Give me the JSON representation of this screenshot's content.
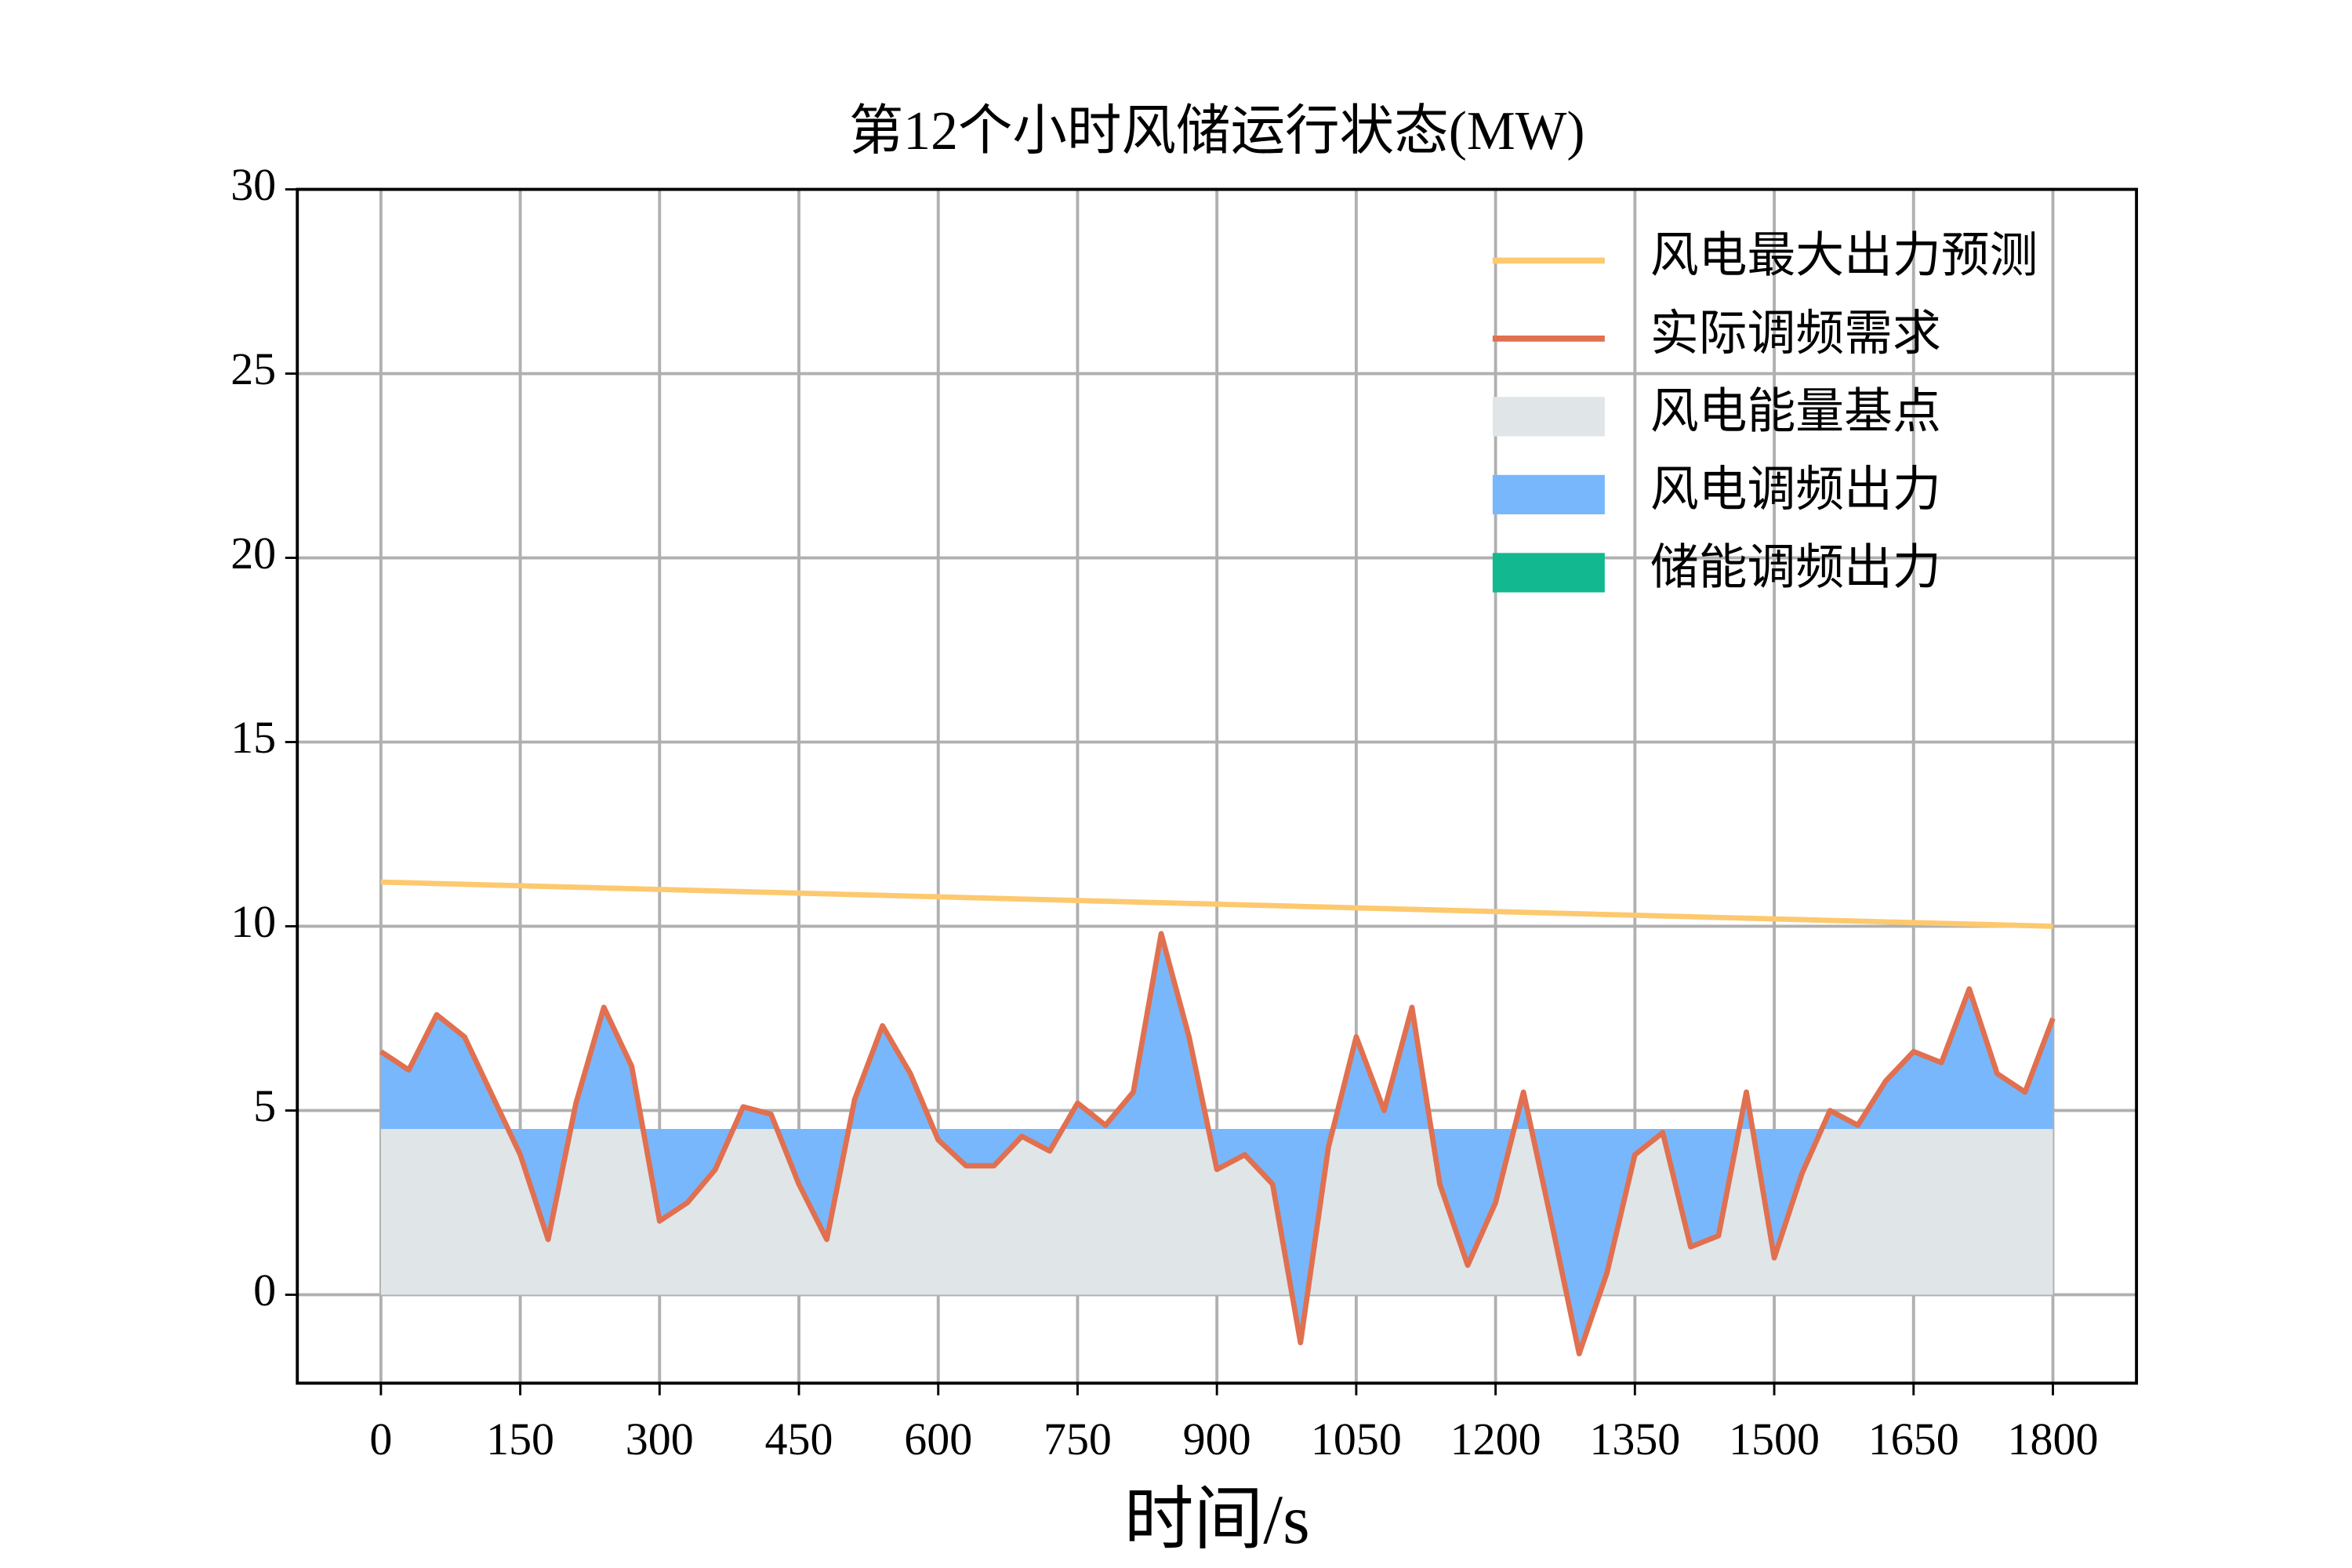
{
  "chart_data": {
    "type": "area",
    "title": "第12个小时风储运行状态(MW)",
    "x_label": "时间/s",
    "x": [
      0,
      30,
      60,
      90,
      120,
      150,
      180,
      210,
      240,
      270,
      300,
      330,
      360,
      390,
      420,
      450,
      480,
      510,
      540,
      570,
      600,
      630,
      660,
      690,
      720,
      750,
      780,
      810,
      840,
      870,
      900,
      930,
      960,
      990,
      1020,
      1050,
      1080,
      1110,
      1140,
      1170,
      1200,
      1230,
      1260,
      1290,
      1320,
      1350,
      1380,
      1410,
      1440,
      1470,
      1500,
      1530,
      1560,
      1590,
      1620,
      1650,
      1680,
      1710,
      1740,
      1770,
      1800
    ],
    "xlim": [
      -90,
      1890
    ],
    "xticks": [
      0,
      150,
      300,
      450,
      600,
      750,
      900,
      1050,
      1200,
      1350,
      1500,
      1650,
      1800
    ],
    "ylim": [
      -2.4,
      30
    ],
    "yticks": [
      0,
      5,
      10,
      15,
      20,
      25,
      30
    ],
    "grid": true,
    "legend": "upper right",
    "series": [
      {
        "name": "风电最大出力预测",
        "color": "#fdc96f",
        "kind": "line",
        "values": [
          11.2,
          11.18,
          11.16,
          11.14,
          11.12,
          11.1,
          11.08,
          11.06,
          11.04,
          11.02,
          11.0,
          10.98,
          10.96,
          10.94,
          10.92,
          10.9,
          10.88,
          10.86,
          10.84,
          10.82,
          10.8,
          10.78,
          10.76,
          10.74,
          10.72,
          10.7,
          10.68,
          10.66,
          10.64,
          10.62,
          10.6,
          10.58,
          10.56,
          10.54,
          10.52,
          10.5,
          10.48,
          10.46,
          10.44,
          10.42,
          10.4,
          10.38,
          10.36,
          10.34,
          10.32,
          10.3,
          10.28,
          10.26,
          10.24,
          10.22,
          10.2,
          10.18,
          10.16,
          10.14,
          10.12,
          10.1,
          10.08,
          10.06,
          10.04,
          10.02,
          10.0
        ]
      },
      {
        "name": "实际调频需求",
        "color": "#e07050",
        "kind": "line",
        "values": [
          6.6,
          6.1,
          7.6,
          7.0,
          5.4,
          3.8,
          1.5,
          5.2,
          7.8,
          6.2,
          2.0,
          2.5,
          3.4,
          5.1,
          4.9,
          3.0,
          1.5,
          5.3,
          7.3,
          6.0,
          4.2,
          3.5,
          3.5,
          4.3,
          3.9,
          5.2,
          4.6,
          5.5,
          9.8,
          7.0,
          3.4,
          3.8,
          3.0,
          -1.3,
          4.0,
          7.0,
          5.0,
          7.8,
          3.0,
          0.8,
          2.5,
          5.5,
          2.0,
          -1.6,
          0.6,
          3.8,
          4.4,
          1.3,
          1.6,
          5.5,
          1.0,
          3.3,
          5.0,
          4.6,
          5.8,
          6.6,
          6.3,
          8.3,
          6.0,
          5.5,
          7.5
        ]
      },
      {
        "name": "风电能量基点",
        "color": "#e0e5e8",
        "kind": "area",
        "values": [
          4.5,
          4.5,
          4.5,
          4.5,
          4.5,
          4.5,
          4.5,
          4.5,
          4.5,
          4.5,
          4.5,
          4.5,
          4.5,
          4.5,
          4.5,
          4.5,
          4.5,
          4.5,
          4.5,
          4.5,
          4.5,
          4.5,
          4.5,
          4.5,
          4.5,
          4.5,
          4.5,
          4.5,
          4.5,
          4.5,
          4.5,
          4.5,
          4.5,
          4.5,
          4.5,
          4.5,
          4.5,
          4.5,
          4.5,
          4.5,
          4.5,
          4.5,
          4.5,
          4.5,
          4.5,
          4.5,
          4.5,
          4.5,
          4.5,
          4.5,
          4.5,
          4.5,
          4.5,
          4.5,
          4.5,
          4.5,
          4.5,
          4.5,
          4.5,
          4.5,
          4.5
        ]
      },
      {
        "name": "风电调频出力",
        "color": "#78b7fc",
        "kind": "area",
        "values": [
          2.1,
          1.6,
          3.1,
          2.5,
          0.9,
          -0.7,
          -3.0,
          0.7,
          3.3,
          1.7,
          -2.5,
          -2.0,
          -1.1,
          0.6,
          0.4,
          -1.5,
          -3.0,
          0.8,
          2.8,
          1.5,
          -0.3,
          -1.0,
          -1.0,
          -0.2,
          -0.6,
          0.7,
          0.1,
          1.0,
          5.3,
          2.5,
          -1.1,
          -0.7,
          -1.5,
          -5.8,
          -0.5,
          2.5,
          0.5,
          3.3,
          -1.5,
          -3.7,
          -2.0,
          1.0,
          -2.5,
          -6.1,
          -3.9,
          -0.7,
          -0.1,
          -3.2,
          -2.9,
          1.0,
          -3.5,
          -1.2,
          0.5,
          0.1,
          1.3,
          2.1,
          1.8,
          3.8,
          1.5,
          1.0,
          3.0
        ]
      },
      {
        "name": "储能调频出力",
        "color": "#12b890",
        "kind": "area",
        "values": [
          0,
          0,
          0,
          0,
          0,
          0,
          0,
          0,
          0,
          0,
          0,
          0,
          0,
          0,
          0,
          0,
          0,
          0,
          0,
          0,
          0,
          0,
          0,
          0,
          0,
          0,
          0,
          0,
          0,
          0,
          0,
          0,
          0,
          0,
          0,
          0,
          0,
          0,
          0,
          0,
          0,
          0,
          0,
          0,
          0,
          0,
          0,
          0,
          0,
          0,
          0,
          0,
          0,
          0,
          0,
          0,
          0,
          0,
          0,
          0,
          0
        ]
      }
    ]
  }
}
